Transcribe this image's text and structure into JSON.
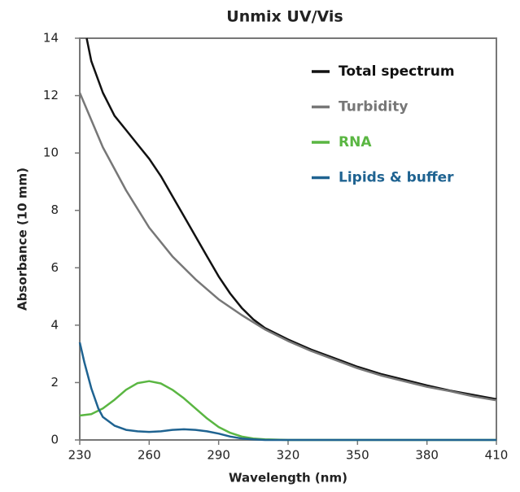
{
  "chart_data": {
    "type": "line",
    "title": "Unmix UV/Vis",
    "x_label": "Wavelength (nm)",
    "y_label": "Absorbance (10 mm)",
    "xlim": [
      230,
      410
    ],
    "xticks": [
      230,
      260,
      290,
      320,
      350,
      380,
      410
    ],
    "ylim": [
      0,
      14
    ],
    "yticks": [
      0,
      2,
      4,
      6,
      8,
      10,
      12,
      14
    ],
    "grid": false,
    "legend": "upper right",
    "series": [
      {
        "name": "Total spectrum",
        "color": "#111111",
        "x": [
          233,
          235,
          240,
          245,
          250,
          255,
          260,
          265,
          270,
          275,
          280,
          285,
          290,
          295,
          300,
          305,
          310,
          320,
          330,
          340,
          350,
          360,
          370,
          380,
          390,
          400,
          410
        ],
        "values": [
          14,
          13.2,
          12.1,
          11.3,
          10.8,
          10.3,
          9.8,
          9.2,
          8.5,
          7.8,
          7.1,
          6.4,
          5.7,
          5.1,
          4.6,
          4.2,
          3.9,
          3.5,
          3.15,
          2.85,
          2.55,
          2.3,
          2.1,
          1.9,
          1.72,
          1.57,
          1.42
        ]
      },
      {
        "name": "Turbidity",
        "color": "#777777",
        "x": [
          230,
          240,
          250,
          260,
          270,
          280,
          290,
          300,
          310,
          320,
          330,
          340,
          350,
          360,
          370,
          380,
          390,
          400,
          410
        ],
        "values": [
          12.1,
          10.2,
          8.7,
          7.4,
          6.4,
          5.6,
          4.9,
          4.35,
          3.85,
          3.45,
          3.1,
          2.8,
          2.5,
          2.25,
          2.05,
          1.85,
          1.7,
          1.52,
          1.38
        ]
      },
      {
        "name": "RNA",
        "color": "#5ab642",
        "x": [
          230,
          235,
          240,
          245,
          250,
          255,
          260,
          265,
          270,
          275,
          280,
          285,
          290,
          295,
          300,
          305,
          310,
          320,
          410
        ],
        "values": [
          0.85,
          0.9,
          1.1,
          1.4,
          1.75,
          1.98,
          2.05,
          1.97,
          1.75,
          1.45,
          1.1,
          0.75,
          0.45,
          0.25,
          0.12,
          0.05,
          0.02,
          0,
          0
        ]
      },
      {
        "name": "Lipids & buffer",
        "color": "#1f6391",
        "x": [
          230,
          232,
          235,
          238,
          240,
          245,
          250,
          255,
          260,
          265,
          270,
          275,
          280,
          285,
          290,
          295,
          300,
          305,
          310,
          410
        ],
        "values": [
          3.4,
          2.7,
          1.8,
          1.1,
          0.8,
          0.5,
          0.35,
          0.3,
          0.28,
          0.3,
          0.35,
          0.37,
          0.35,
          0.3,
          0.22,
          0.12,
          0.05,
          0.02,
          0,
          0
        ]
      }
    ]
  }
}
